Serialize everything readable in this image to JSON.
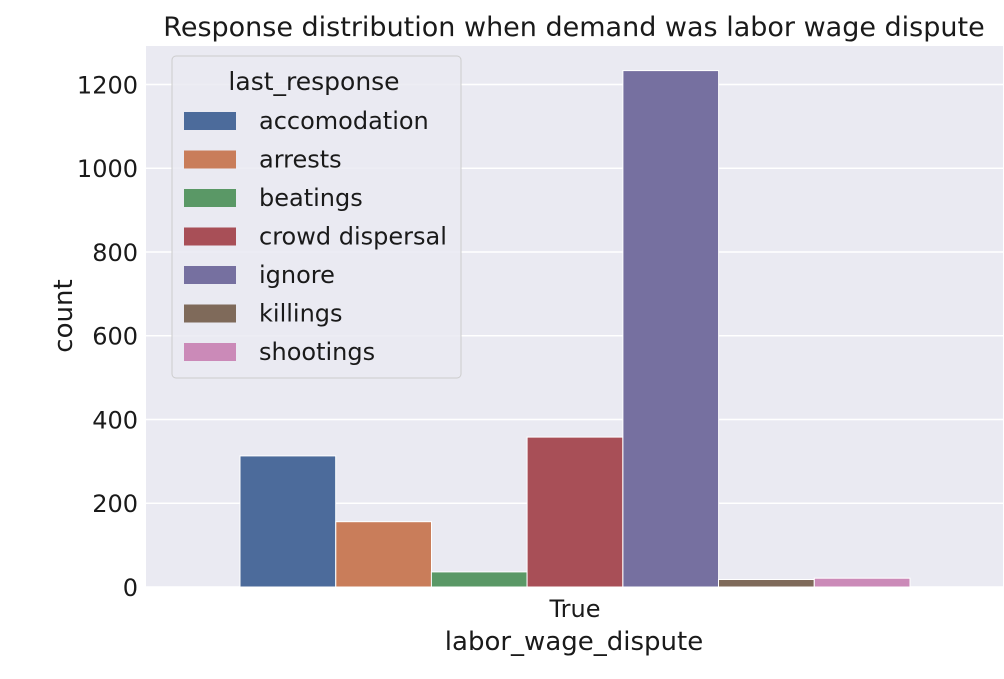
{
  "chart_data": {
    "type": "bar",
    "title": "Response distribution when demand was labor wage dispute",
    "xlabel": "labor_wage_dispute",
    "ylabel": "count",
    "categories": [
      "True"
    ],
    "ylim": [
      0,
      1300
    ],
    "yticks": [
      0,
      200,
      400,
      600,
      800,
      1000,
      1200
    ],
    "grid": true,
    "legend": {
      "title": "last_response",
      "placement": "top-left"
    },
    "series": [
      {
        "name": "accomodation",
        "values": [
          313
        ],
        "color": "#4c6b9b"
      },
      {
        "name": "arrests",
        "values": [
          156
        ],
        "color": "#c97d5a"
      },
      {
        "name": "beatings",
        "values": [
          36
        ],
        "color": "#5a9866"
      },
      {
        "name": "crowd dispersal",
        "values": [
          358
        ],
        "color": "#a84f57"
      },
      {
        "name": "ignore",
        "values": [
          1233
        ],
        "color": "#7670a0"
      },
      {
        "name": "killings",
        "values": [
          18
        ],
        "color": "#7f6a5a"
      },
      {
        "name": "shootings",
        "values": [
          21
        ],
        "color": "#cb8ab8"
      }
    ]
  }
}
